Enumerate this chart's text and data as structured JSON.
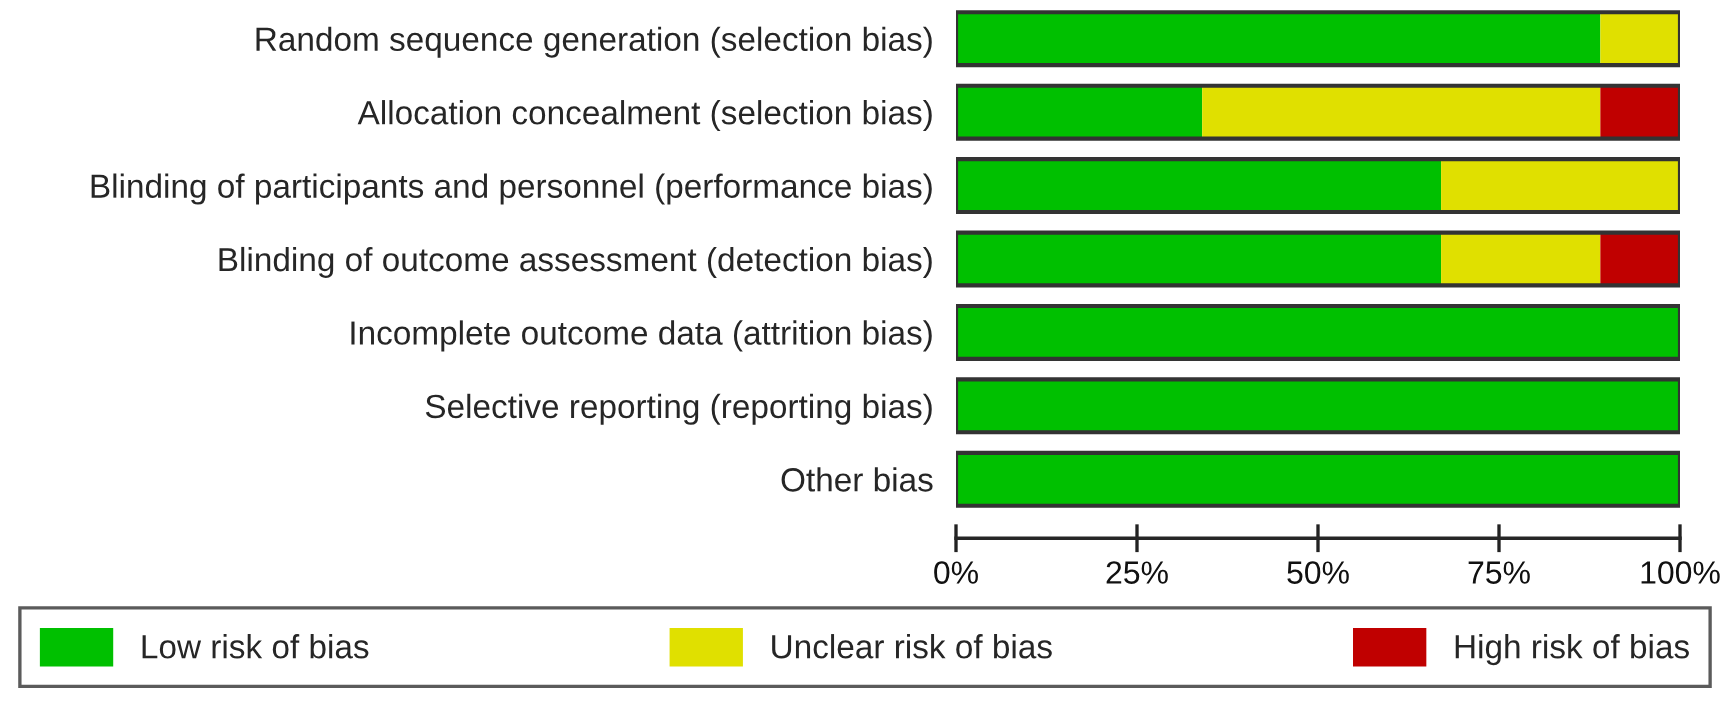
{
  "chart_data": {
    "type": "bar",
    "orientation": "horizontal",
    "stacked": true,
    "categories": [
      "Random sequence generation (selection bias)",
      "Allocation concealment (selection bias)",
      "Blinding of participants and personnel (performance bias)",
      "Blinding of outcome assessment (detection bias)",
      "Incomplete outcome data (attrition bias)",
      "Selective reporting (reporting bias)",
      "Other bias"
    ],
    "series": [
      {
        "name": "Low risk of bias",
        "color": "#00c000",
        "values": [
          89,
          34,
          67,
          67,
          100,
          100,
          100
        ]
      },
      {
        "name": "Unclear risk of bias",
        "color": "#e0e000",
        "values": [
          11,
          55,
          33,
          22,
          0,
          0,
          0
        ]
      },
      {
        "name": "High risk of bias",
        "color": "#c00000",
        "values": [
          0,
          11,
          0,
          11,
          0,
          0,
          0
        ]
      }
    ],
    "xlim": [
      0,
      100
    ],
    "xticks": [
      {
        "value": 0,
        "label": "0%"
      },
      {
        "value": 25,
        "label": "25%"
      },
      {
        "value": 50,
        "label": "50%"
      },
      {
        "value": 75,
        "label": "75%"
      },
      {
        "value": 100,
        "label": "100%"
      }
    ],
    "legend": "bottom",
    "grid": false
  }
}
